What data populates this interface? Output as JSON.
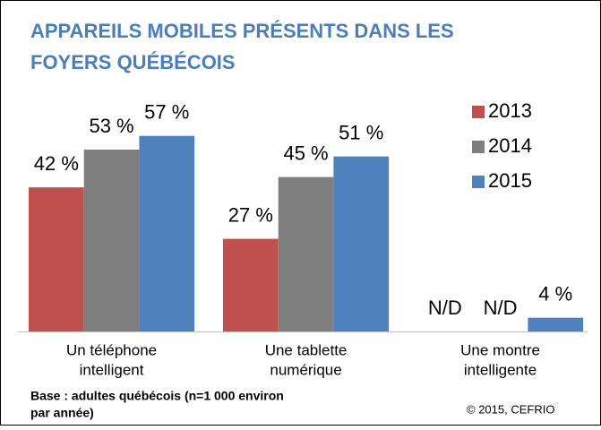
{
  "chart_data": {
    "type": "bar",
    "title": [
      "APPAREILS MOBILES PRÉSENTS DANS LES",
      "FOYERS QUÉBÉCOIS"
    ],
    "categories": [
      [
        "Un téléphone",
        "intelligent"
      ],
      [
        "Une tablette",
        "numérique"
      ],
      [
        "Une montre",
        "intelligente"
      ]
    ],
    "series": [
      {
        "name": "2013",
        "color": "#c0504d",
        "values": [
          42,
          27,
          null
        ],
        "value_labels": [
          "42 %",
          "27 %",
          "N/D"
        ]
      },
      {
        "name": "2014",
        "color": "#7f7f7f",
        "values": [
          53,
          45,
          null
        ],
        "value_labels": [
          "53 %",
          "45 %",
          "N/D"
        ]
      },
      {
        "name": "2015",
        "color": "#4f81bd",
        "values": [
          57,
          51,
          4
        ],
        "value_labels": [
          "57 %",
          "51 %",
          "4 %"
        ]
      }
    ],
    "legend": "right",
    "note": [
      "Base : adultes québécois (n=1 000 environ",
      "par année)"
    ],
    "source": "© 2015, CEFRIO"
  }
}
